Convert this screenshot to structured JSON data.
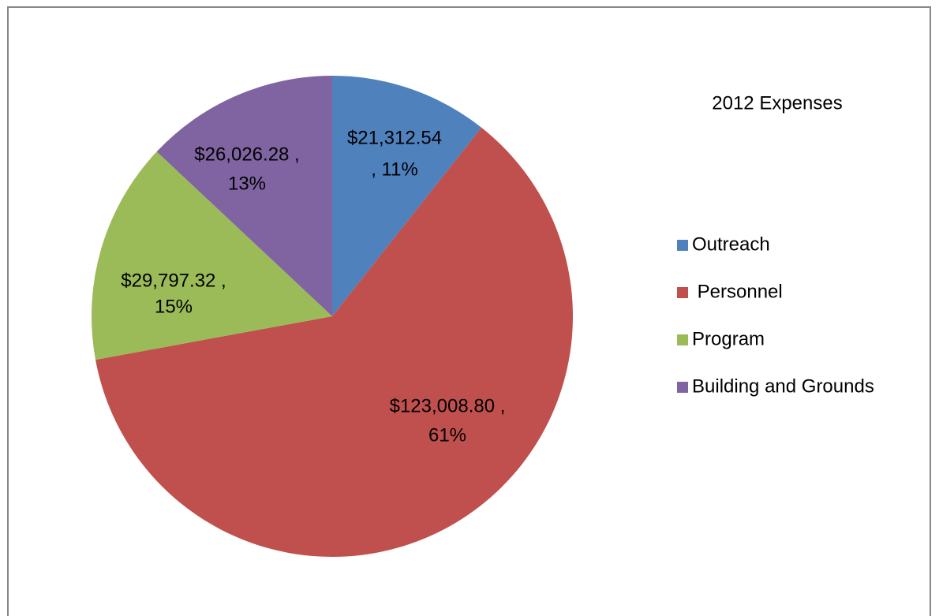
{
  "chart_data": {
    "type": "pie",
    "title": "2012 Expenses",
    "categories": [
      "Outreach",
      " Personnel",
      "Program",
      "Building and Grounds"
    ],
    "values": [
      21312.54,
      123008.8,
      29797.32,
      26026.28
    ],
    "value_labels": [
      [
        "$21,312.54",
        ", 11%"
      ],
      [
        "$123,008.80 ,",
        "61%"
      ],
      [
        "$29,797.32 ,",
        "15%"
      ],
      [
        "$26,026.28 ,",
        "13%"
      ]
    ],
    "colors": [
      "#4f81bd",
      "#c0504d",
      "#9bbb59",
      "#8064a2"
    ],
    "legend": "right"
  }
}
